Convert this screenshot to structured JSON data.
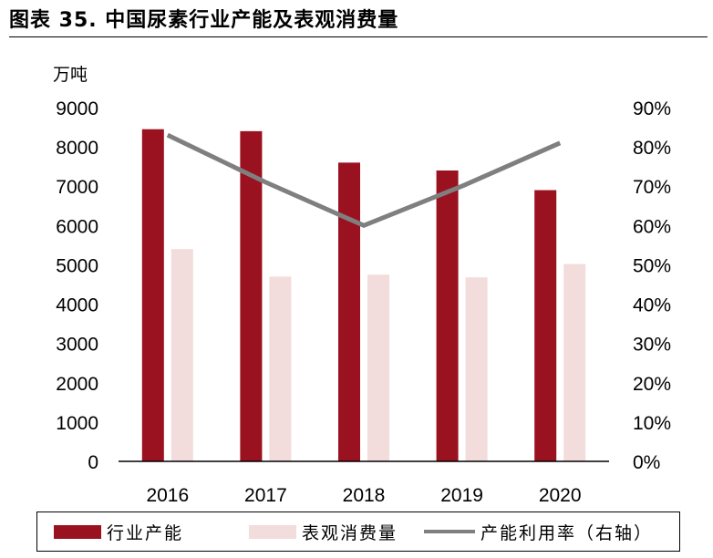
{
  "figure_title": "图表 35. 中国尿素行业产能及表观消费量",
  "colors": {
    "capacity": "#9a111f",
    "consumption": "#f3dcdc",
    "utilization": "#7f7f7f"
  },
  "chart_data": {
    "type": "bar",
    "categories": [
      "2016",
      "2017",
      "2018",
      "2019",
      "2020"
    ],
    "series": [
      {
        "name": "行业产能",
        "type": "bar",
        "axis": "left",
        "values": [
          8450,
          8400,
          7600,
          7400,
          6900
        ]
      },
      {
        "name": "表观消费量",
        "type": "bar",
        "axis": "left",
        "values": [
          5400,
          4700,
          4750,
          4680,
          5020
        ]
      },
      {
        "name": "产能利用率（右轴）",
        "type": "line",
        "axis": "right",
        "values": [
          0.83,
          0.71,
          0.6,
          0.7,
          0.81
        ]
      }
    ],
    "left_axis": {
      "unit": "万吨",
      "ylim": [
        0,
        9000
      ],
      "ticks": [
        "0",
        "1000",
        "2000",
        "3000",
        "4000",
        "5000",
        "6000",
        "7000",
        "8000",
        "9000"
      ]
    },
    "right_axis": {
      "ylim": [
        0,
        0.9
      ],
      "ticks": [
        "0%",
        "10%",
        "20%",
        "30%",
        "40%",
        "50%",
        "60%",
        "70%",
        "80%",
        "90%"
      ]
    },
    "grid": false,
    "legend_position": "bottom"
  }
}
